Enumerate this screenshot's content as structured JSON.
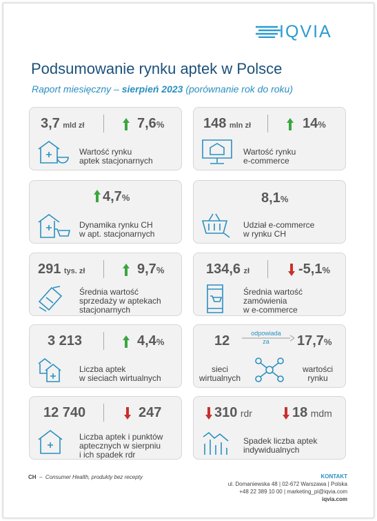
{
  "header": {
    "logo": "IQVIA",
    "title": "Podsumowanie rynku aptek w Polsce",
    "subtitle_prefix": "Raport miesięczny – ",
    "subtitle_bold": "sierpień 2023",
    "subtitle_suffix": " (porównanie rok do roku)"
  },
  "cards": [
    {
      "value": "3,7",
      "unit": "mld zł",
      "change": "7,6",
      "change_unit": "%",
      "label": [
        "Wartość rynku",
        "aptek stacjonarnych"
      ]
    },
    {
      "value": "148",
      "unit": "mln zł",
      "change": "14",
      "change_unit": "%",
      "label": [
        "Wartość rynku",
        "e-commerce"
      ]
    },
    {
      "change": "4,7",
      "change_unit": "%",
      "label": [
        "Dynamika rynku CH",
        "w apt. stacjonarnych"
      ]
    },
    {
      "value": "8,1",
      "unit": "%",
      "label": [
        "Udział e-commerce",
        "w rynku CH"
      ]
    },
    {
      "value": "291",
      "unit": "tys. zł",
      "change": "9,7",
      "change_unit": "%",
      "label": [
        "Średnia wartość",
        "sprzedaży w aptekach",
        "stacjonarnych"
      ]
    },
    {
      "value": "134,6",
      "unit": "zł",
      "change": "-5,1",
      "change_unit": "%",
      "label": [
        "Średnia wartość",
        "zamówienia",
        "w e-commerce"
      ]
    },
    {
      "value": "3 213",
      "change": "4,4",
      "change_unit": "%",
      "label": [
        "Liczba aptek",
        "w sieciach wirtualnych"
      ]
    },
    {
      "value": "12",
      "connector": [
        "odpowiada",
        "za"
      ],
      "change": "17,7",
      "change_unit": "%",
      "left_label": [
        "sieci",
        "wirtualnych"
      ],
      "right_label": [
        "wartości",
        "rynku"
      ]
    },
    {
      "value": "12 740",
      "change": "247",
      "label": [
        "Liczba aptek i punktów",
        "aptecznych w sierpniu",
        "i ich spadek rdr"
      ]
    },
    {
      "value": "310",
      "unit": "rdr",
      "change": "18",
      "change_unit": "mdm",
      "label": [
        "Spadek liczba aptek",
        "indywidualnych"
      ]
    }
  ],
  "footer": {
    "abbr": "CH",
    "dash": "–",
    "abbr_text": "Consumer Health, produkty bez recepty",
    "contact_title": "KONTAKT",
    "address": "ul. Domaniewska 48 | 02-672 Warszawa | Polska",
    "phone_mail": "+48 22 389 10 00 | marketing_pl@iqvia.com",
    "web": "iqvia.com"
  }
}
